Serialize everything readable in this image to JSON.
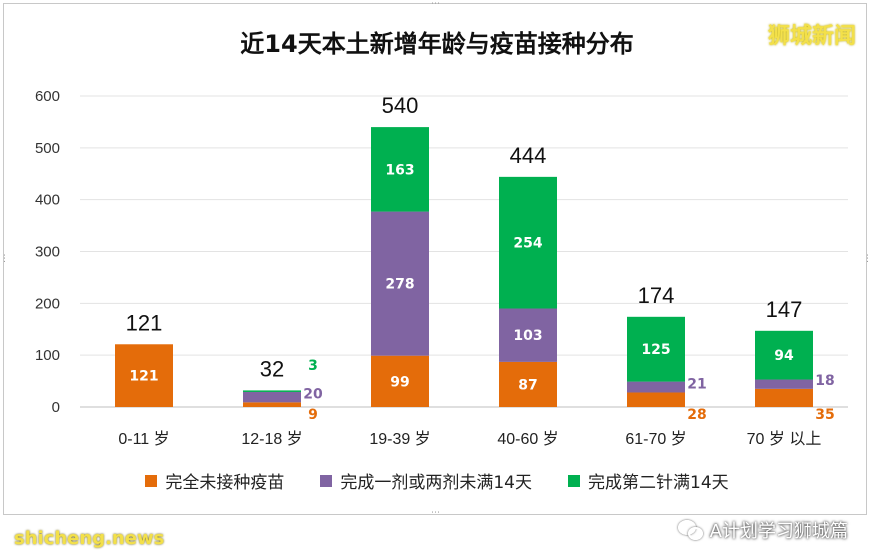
{
  "header": {
    "title": "近14天本土新增年龄与疫苗接种分布",
    "brand": "狮城新闻"
  },
  "footer": {
    "left_text": "shicheng.news",
    "right_text": "A计划学习狮城篇"
  },
  "chart_data": {
    "type": "bar",
    "stacked": true,
    "title": "近14天本土新增年龄与疫苗接种分布",
    "xlabel": "",
    "ylabel": "",
    "ylim": [
      0,
      600
    ],
    "yticks": [
      0,
      100,
      200,
      300,
      400,
      500,
      600
    ],
    "grid": true,
    "legend_position": "bottom",
    "categories": [
      "0-11 岁",
      "12-18 岁",
      "19-39 岁",
      "40-60 岁",
      "61-70 岁",
      "70 岁 以上"
    ],
    "totals": [
      121,
      32,
      540,
      444,
      174,
      147
    ],
    "series": [
      {
        "name": "完全未接种疫苗",
        "color": "#e46c0a",
        "values": [
          121,
          9,
          99,
          87,
          28,
          35
        ]
      },
      {
        "name": "完成一剂或两剂未满14天",
        "color": "#8064a2",
        "values": [
          0,
          20,
          278,
          103,
          21,
          18
        ]
      },
      {
        "name": "完成第二针满14天",
        "color": "#00b050",
        "values": [
          0,
          3,
          163,
          254,
          125,
          94
        ]
      }
    ]
  }
}
